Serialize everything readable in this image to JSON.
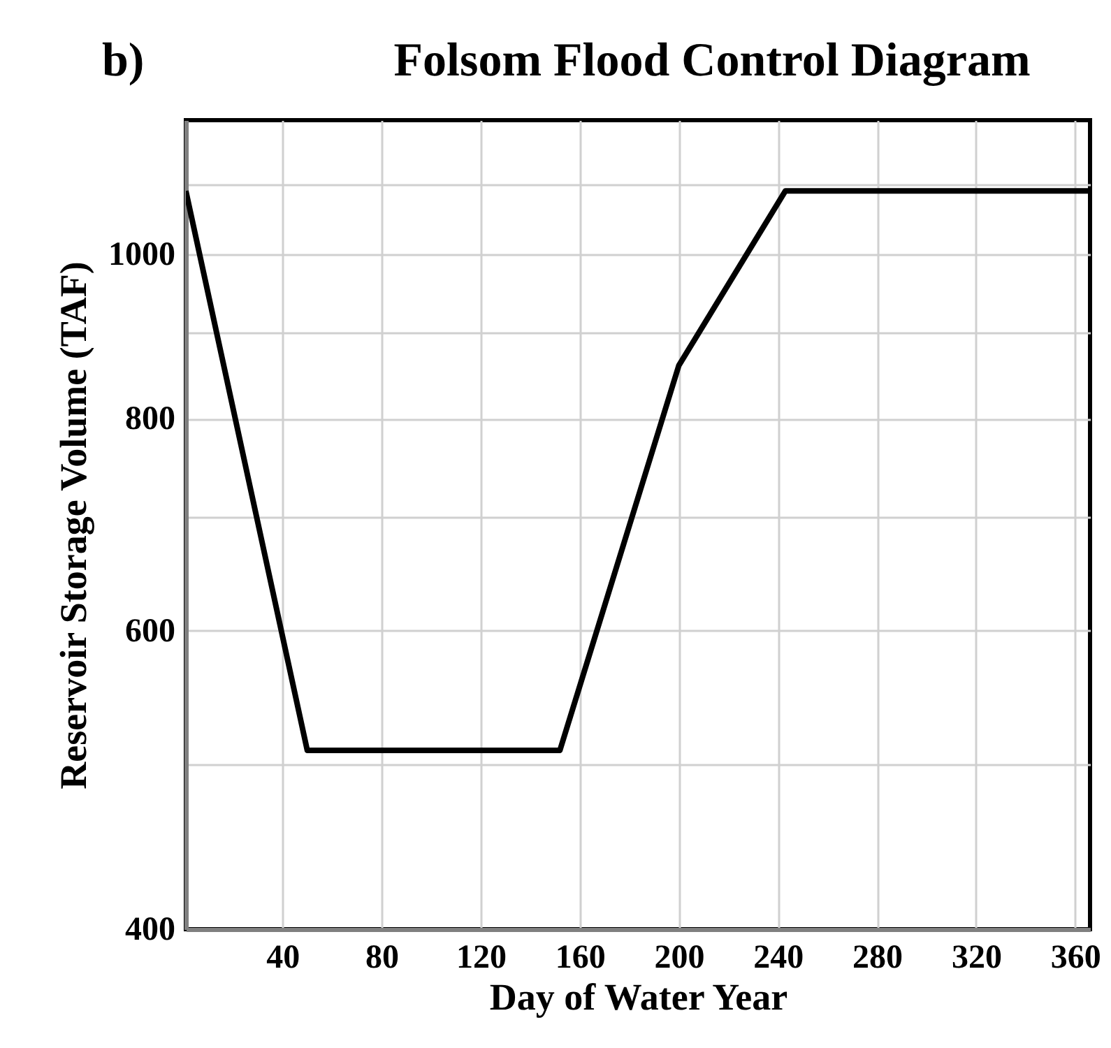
{
  "chart_data": {
    "type": "line",
    "title": "Folsom Flood Control Diagram",
    "annotations": [
      "b)"
    ],
    "xlabel": "Day of Water Year",
    "ylabel": "Reservoir Storage Volume (TAF)",
    "x": [
      1,
      50,
      152,
      200,
      243,
      366
    ],
    "series": [
      {
        "color": "#000000",
        "values": [
          1090,
          510,
          510,
          860,
          1090,
          1090
        ]
      }
    ],
    "xlim": [
      1,
      366
    ],
    "xticks": [
      40,
      80,
      120,
      160,
      200,
      240,
      280,
      320,
      360
    ],
    "ylim": [
      400,
      1200
    ],
    "yticks": [
      400,
      {
        "value": 500,
        "label": null
      },
      600,
      {
        "value": 700,
        "label": null
      },
      800,
      {
        "value": 900,
        "label": null
      },
      1000,
      {
        "value": 1100,
        "label": null
      }
    ],
    "log": "y",
    "grid": true,
    "marker": "none",
    "line_style": "solid"
  }
}
